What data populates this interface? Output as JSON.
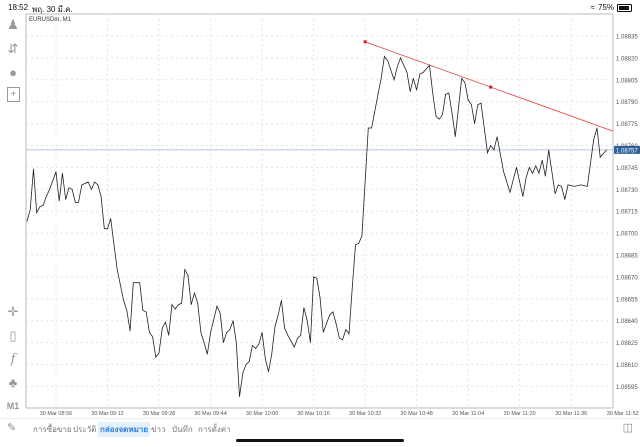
{
  "status_bar": {
    "time": "18:52",
    "date": "พฤ. 30 มี.ค.",
    "battery": "75%",
    "battery_level": 0.75
  },
  "chart": {
    "symbol": "EURUSDm, M1",
    "timeframe_button": "M1",
    "current_price": "1.08757",
    "colors": {
      "line": "#222222",
      "trendline": "#e05050",
      "price_line": "#9fb4cc",
      "price_label_bg": "#2f5f96"
    }
  },
  "chart_data": {
    "type": "line",
    "title": "EURUSDm, M1",
    "x_tick_labels": [
      "30 Mar 08:56",
      "30 Mar 09:12",
      "30 Mar 09:28",
      "30 Mar 09:44",
      "30 Mar 10:00",
      "30 Mar 10:16",
      "30 Mar 10:32",
      "30 Mar 10:48",
      "30 Mar 11:04",
      "30 Mar 11:20",
      "30 Mar 11:36",
      "30 Mar 11:52"
    ],
    "y_tick_labels": [
      "1.08835",
      "1.08820",
      "1.08805",
      "1.08790",
      "1.08775",
      "1.08760",
      "1.08745",
      "1.08730",
      "1.08715",
      "1.08700",
      "1.08685",
      "1.08670",
      "1.08655",
      "1.08640",
      "1.08625",
      "1.08610",
      "1.08595"
    ],
    "ylim": [
      1.08585,
      1.08845
    ],
    "grid": true,
    "series": [
      {
        "points": [
          [
            "08:47",
            1.08708
          ],
          [
            "08:48",
            1.08716
          ],
          [
            "08:49",
            1.08744
          ],
          [
            "08:50",
            1.08714
          ],
          [
            "08:51",
            1.08718
          ],
          [
            "08:52",
            1.08719
          ],
          [
            "08:53",
            1.08725
          ],
          [
            "08:54",
            1.0873
          ],
          [
            "08:56",
            1.08742
          ],
          [
            "08:57",
            1.08722
          ],
          [
            "08:58",
            1.08741
          ],
          [
            "08:59",
            1.08723
          ],
          [
            "09:00",
            1.08731
          ],
          [
            "09:01",
            1.0873
          ],
          [
            "09:02",
            1.08721
          ],
          [
            "09:03",
            1.08721
          ],
          [
            "09:04",
            1.08733
          ],
          [
            "09:05",
            1.08734
          ],
          [
            "09:06",
            1.08735
          ],
          [
            "09:07",
            1.0873
          ],
          [
            "09:08",
            1.08735
          ],
          [
            "09:09",
            1.08733
          ],
          [
            "09:10",
            1.08725
          ],
          [
            "09:11",
            1.08703
          ],
          [
            "09:12",
            1.08703
          ],
          [
            "09:13",
            1.0871
          ],
          [
            "09:14",
            1.08692
          ],
          [
            "09:15",
            1.08675
          ],
          [
            "09:17",
            1.08654
          ],
          [
            "09:18",
            1.08647
          ],
          [
            "09:19",
            1.08633
          ],
          [
            "09:20",
            1.08666
          ],
          [
            "09:22",
            1.08666
          ],
          [
            "09:23",
            1.08647
          ],
          [
            "09:24",
            1.08646
          ],
          [
            "09:25",
            1.08632
          ],
          [
            "09:26",
            1.08629
          ],
          [
            "09:27",
            1.08615
          ],
          [
            "09:28",
            1.08618
          ],
          [
            "09:29",
            1.08635
          ],
          [
            "09:30",
            1.08639
          ],
          [
            "09:31",
            1.0863
          ],
          [
            "09:32",
            1.08651
          ],
          [
            "09:33",
            1.08648
          ],
          [
            "09:34",
            1.08651
          ],
          [
            "09:35",
            1.08652
          ],
          [
            "09:36",
            1.08675
          ],
          [
            "09:37",
            1.08671
          ],
          [
            "09:38",
            1.08651
          ],
          [
            "09:39",
            1.08659
          ],
          [
            "09:40",
            1.08652
          ],
          [
            "09:41",
            1.08632
          ],
          [
            "09:42",
            1.08625
          ],
          [
            "09:43",
            1.08617
          ],
          [
            "09:44",
            1.08632
          ],
          [
            "09:46",
            1.0865
          ],
          [
            "09:47",
            1.08645
          ],
          [
            "09:48",
            1.08625
          ],
          [
            "09:49",
            1.08632
          ],
          [
            "09:50",
            1.08634
          ],
          [
            "09:51",
            1.0864
          ],
          [
            "09:52",
            1.08625
          ],
          [
            "09:53",
            1.08588
          ],
          [
            "09:54",
            1.08604
          ],
          [
            "09:55",
            1.0861
          ],
          [
            "09:56",
            1.08612
          ],
          [
            "09:57",
            1.08623
          ],
          [
            "09:58",
            1.08621
          ],
          [
            "09:59",
            1.08624
          ],
          [
            "10:00",
            1.08632
          ],
          [
            "10:01",
            1.08614
          ],
          [
            "10:02",
            1.08605
          ],
          [
            "10:03",
            1.08617
          ],
          [
            "10:04",
            1.08636
          ],
          [
            "10:05",
            1.08644
          ],
          [
            "10:06",
            1.08654
          ],
          [
            "10:07",
            1.08635
          ],
          [
            "10:08",
            1.0863
          ],
          [
            "10:10",
            1.08622
          ],
          [
            "10:11",
            1.08628
          ],
          [
            "10:12",
            1.0863
          ],
          [
            "10:13",
            1.08649
          ],
          [
            "10:14",
            1.0864
          ],
          [
            "10:15",
            1.08625
          ],
          [
            "10:16",
            1.0867
          ],
          [
            "10:17",
            1.08669
          ],
          [
            "10:18",
            1.08656
          ],
          [
            "10:19",
            1.08632
          ],
          [
            "10:21",
            1.08644
          ],
          [
            "10:22",
            1.08646
          ],
          [
            "10:23",
            1.08638
          ],
          [
            "10:24",
            1.08628
          ],
          [
            "10:25",
            1.08627
          ],
          [
            "10:26",
            1.08634
          ],
          [
            "10:27",
            1.08631
          ],
          [
            "10:28",
            1.08662
          ],
          [
            "10:29",
            1.08692
          ],
          [
            "10:30",
            1.08693
          ],
          [
            "10:31",
            1.08698
          ],
          [
            "10:33",
            1.08772
          ],
          [
            "10:34",
            1.08772
          ],
          [
            "10:36",
            1.08795
          ],
          [
            "10:37",
            1.08806
          ],
          [
            "10:38",
            1.08821
          ],
          [
            "10:39",
            1.08818
          ],
          [
            "10:41",
            1.08805
          ],
          [
            "10:42",
            1.08814
          ],
          [
            "10:43",
            1.0882
          ],
          [
            "10:45",
            1.0881
          ],
          [
            "10:46",
            1.08797
          ],
          [
            "10:47",
            1.08806
          ],
          [
            "10:48",
            1.08798
          ],
          [
            "10:49",
            1.08809
          ],
          [
            "10:50",
            1.0881
          ],
          [
            "10:52",
            1.08815
          ],
          [
            "10:53",
            1.08796
          ],
          [
            "10:54",
            1.0878
          ],
          [
            "10:55",
            1.08778
          ],
          [
            "10:56",
            1.08781
          ],
          [
            "10:57",
            1.08795
          ],
          [
            "10:58",
            1.08796
          ],
          [
            "10:59",
            1.08782
          ],
          [
            "11:00",
            1.08766
          ],
          [
            "11:02",
            1.08806
          ],
          [
            "11:03",
            1.08803
          ],
          [
            "11:04",
            1.08791
          ],
          [
            "11:05",
            1.08788
          ],
          [
            "11:06",
            1.08775
          ],
          [
            "11:07",
            1.08788
          ],
          [
            "11:08",
            1.08789
          ],
          [
            "11:10",
            1.08755
          ],
          [
            "11:11",
            1.0876
          ],
          [
            "11:12",
            1.08757
          ],
          [
            "11:13",
            1.08766
          ],
          [
            "11:15",
            1.08742
          ],
          [
            "11:17",
            1.08728
          ],
          [
            "11:19",
            1.08745
          ],
          [
            "11:21",
            1.08725
          ],
          [
            "11:22",
            1.08738
          ],
          [
            "11:23",
            1.08745
          ],
          [
            "11:24",
            1.08741
          ],
          [
            "11:25",
            1.08746
          ],
          [
            "11:26",
            1.08741
          ],
          [
            "11:27",
            1.0875
          ],
          [
            "11:28",
            1.08739
          ],
          [
            "11:29",
            1.08757
          ],
          [
            "11:31",
            1.08727
          ],
          [
            "11:32",
            1.08733
          ],
          [
            "11:33",
            1.08732
          ],
          [
            "11:34",
            1.08723
          ],
          [
            "11:35",
            1.08733
          ],
          [
            "11:37",
            1.08732
          ],
          [
            "11:39",
            1.08733
          ],
          [
            "11:41",
            1.08732
          ],
          [
            "11:43",
            1.08764
          ],
          [
            "11:44",
            1.08772
          ],
          [
            "11:45",
            1.08752
          ],
          [
            "11:47",
            1.08757
          ]
        ]
      }
    ],
    "trendline": {
      "points": [
        [
          "10:32",
          1.08831
        ],
        [
          "11:11",
          1.088
        ]
      ]
    },
    "price_line": 1.08757
  },
  "sidebar": {
    "top_icons": [
      "account-icon",
      "trade-arrows-icon",
      "chat-icon",
      "new-document-icon"
    ],
    "bottom_icons": [
      "crosshair-icon",
      "candlestick-icon",
      "function-icon",
      "objects-icon"
    ]
  },
  "tabs": [
    {
      "label": "การซื้อขาย",
      "active": false
    },
    {
      "label": "ประวัติ",
      "active": false
    },
    {
      "label": "กล่องจดหมาย",
      "active": true
    },
    {
      "label": "ข่าว",
      "active": false
    },
    {
      "label": "บันทึก",
      "active": false
    },
    {
      "label": "การตั้งค่า",
      "active": false
    }
  ]
}
